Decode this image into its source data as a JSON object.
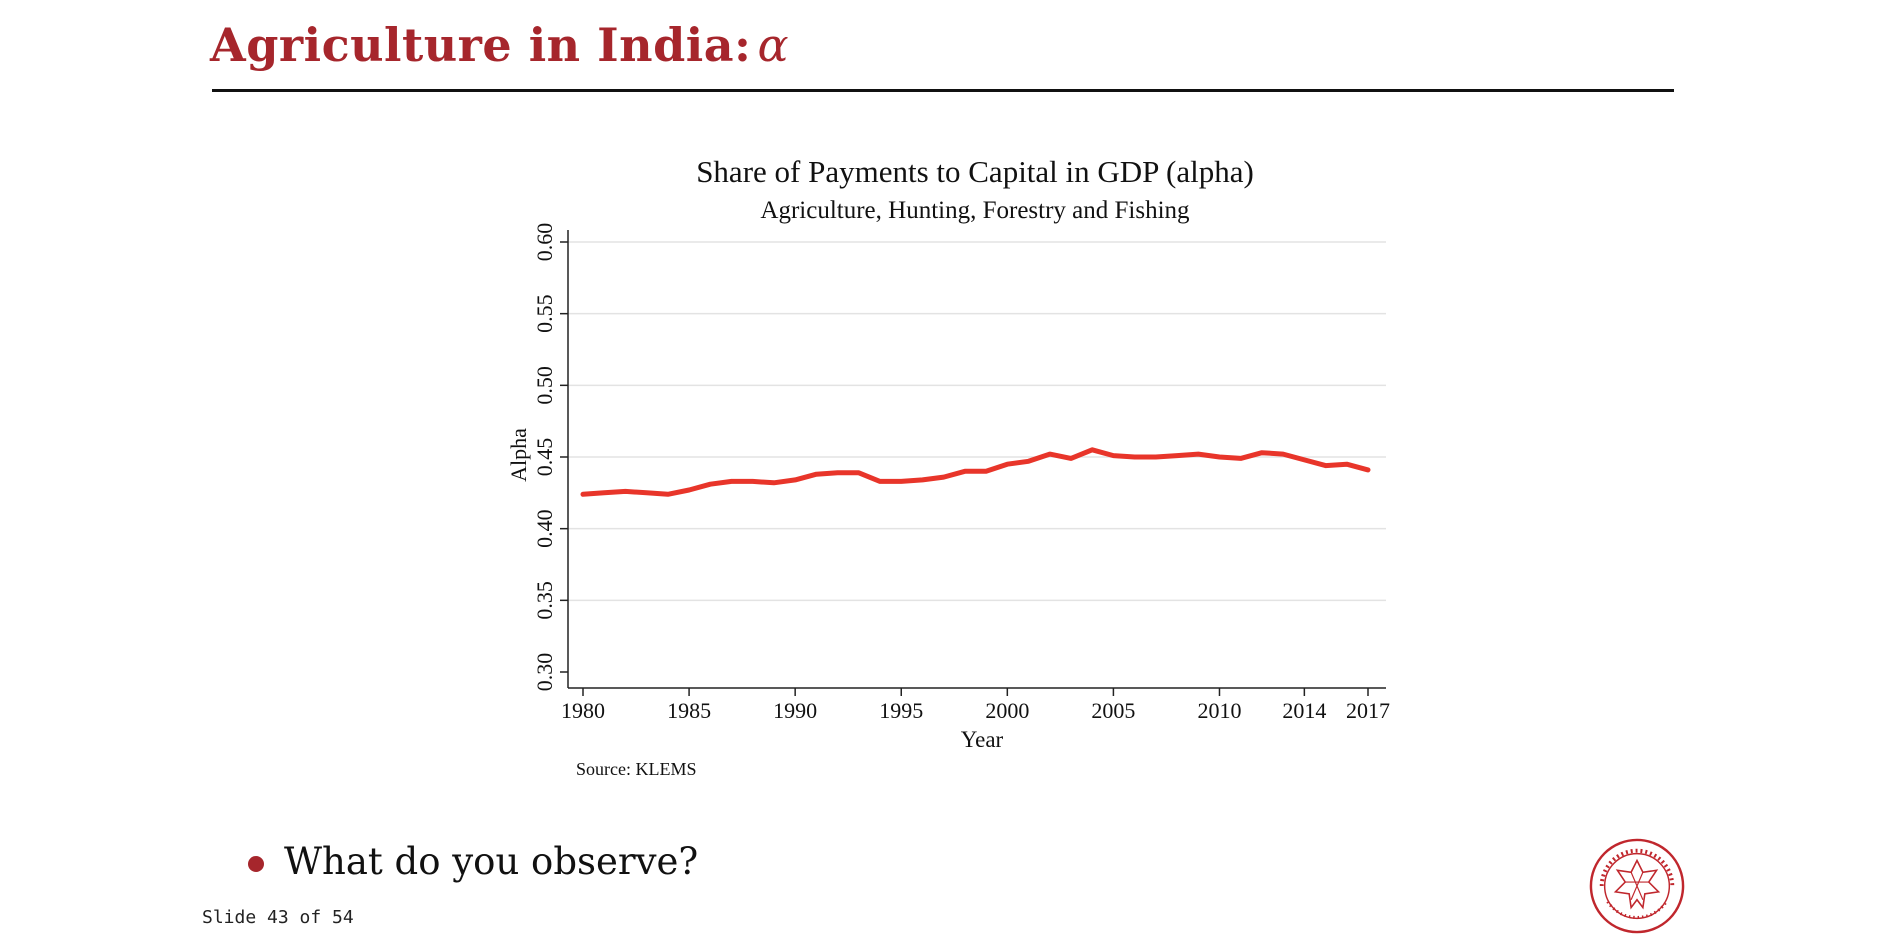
{
  "slide": {
    "title": "Agriculture in India:",
    "title_symbol": "α",
    "bullet": "What do you observe?",
    "counter": "Slide 43 of 54",
    "accent_color": "#A6262C",
    "logo_text": "CARNEGIE MELLON UNIVERSITY · PITTSBURGH PENNSYLVANIA 1900"
  },
  "chart_data": {
    "type": "line",
    "title": "Share of Payments to Capital in GDP (alpha)",
    "subtitle": "Agriculture, Hunting, Forestry and Fishing",
    "xlabel": "Year",
    "ylabel": "Alpha",
    "source": "Source: KLEMS",
    "xlim": [
      1980,
      2017
    ],
    "ylim": [
      0.3,
      0.6
    ],
    "x_ticks": [
      1980,
      1985,
      1990,
      1995,
      2000,
      2005,
      2010,
      2014,
      2017
    ],
    "y_ticks": [
      "0.30",
      "0.35",
      "0.40",
      "0.45",
      "0.50",
      "0.55",
      "0.60"
    ],
    "grid": true,
    "line_color": "#E8352A",
    "series": [
      {
        "x": [
          1980,
          1981,
          1982,
          1983,
          1984,
          1985,
          1986,
          1987,
          1988,
          1989,
          1990,
          1991,
          1992,
          1993,
          1994,
          1995,
          1996,
          1997,
          1998,
          1999,
          2000,
          2001,
          2002,
          2003,
          2004,
          2005,
          2006,
          2007,
          2008,
          2009,
          2010,
          2011,
          2012,
          2013,
          2014,
          2015,
          2016,
          2017
        ],
        "values": [
          0.424,
          0.425,
          0.426,
          0.425,
          0.424,
          0.427,
          0.431,
          0.433,
          0.433,
          0.432,
          0.434,
          0.438,
          0.439,
          0.439,
          0.433,
          0.433,
          0.434,
          0.436,
          0.44,
          0.44,
          0.445,
          0.447,
          0.452,
          0.449,
          0.455,
          0.451,
          0.45,
          0.45,
          0.451,
          0.452,
          0.45,
          0.449,
          0.453,
          0.452,
          0.448,
          0.444,
          0.445,
          0.441
        ]
      }
    ]
  }
}
